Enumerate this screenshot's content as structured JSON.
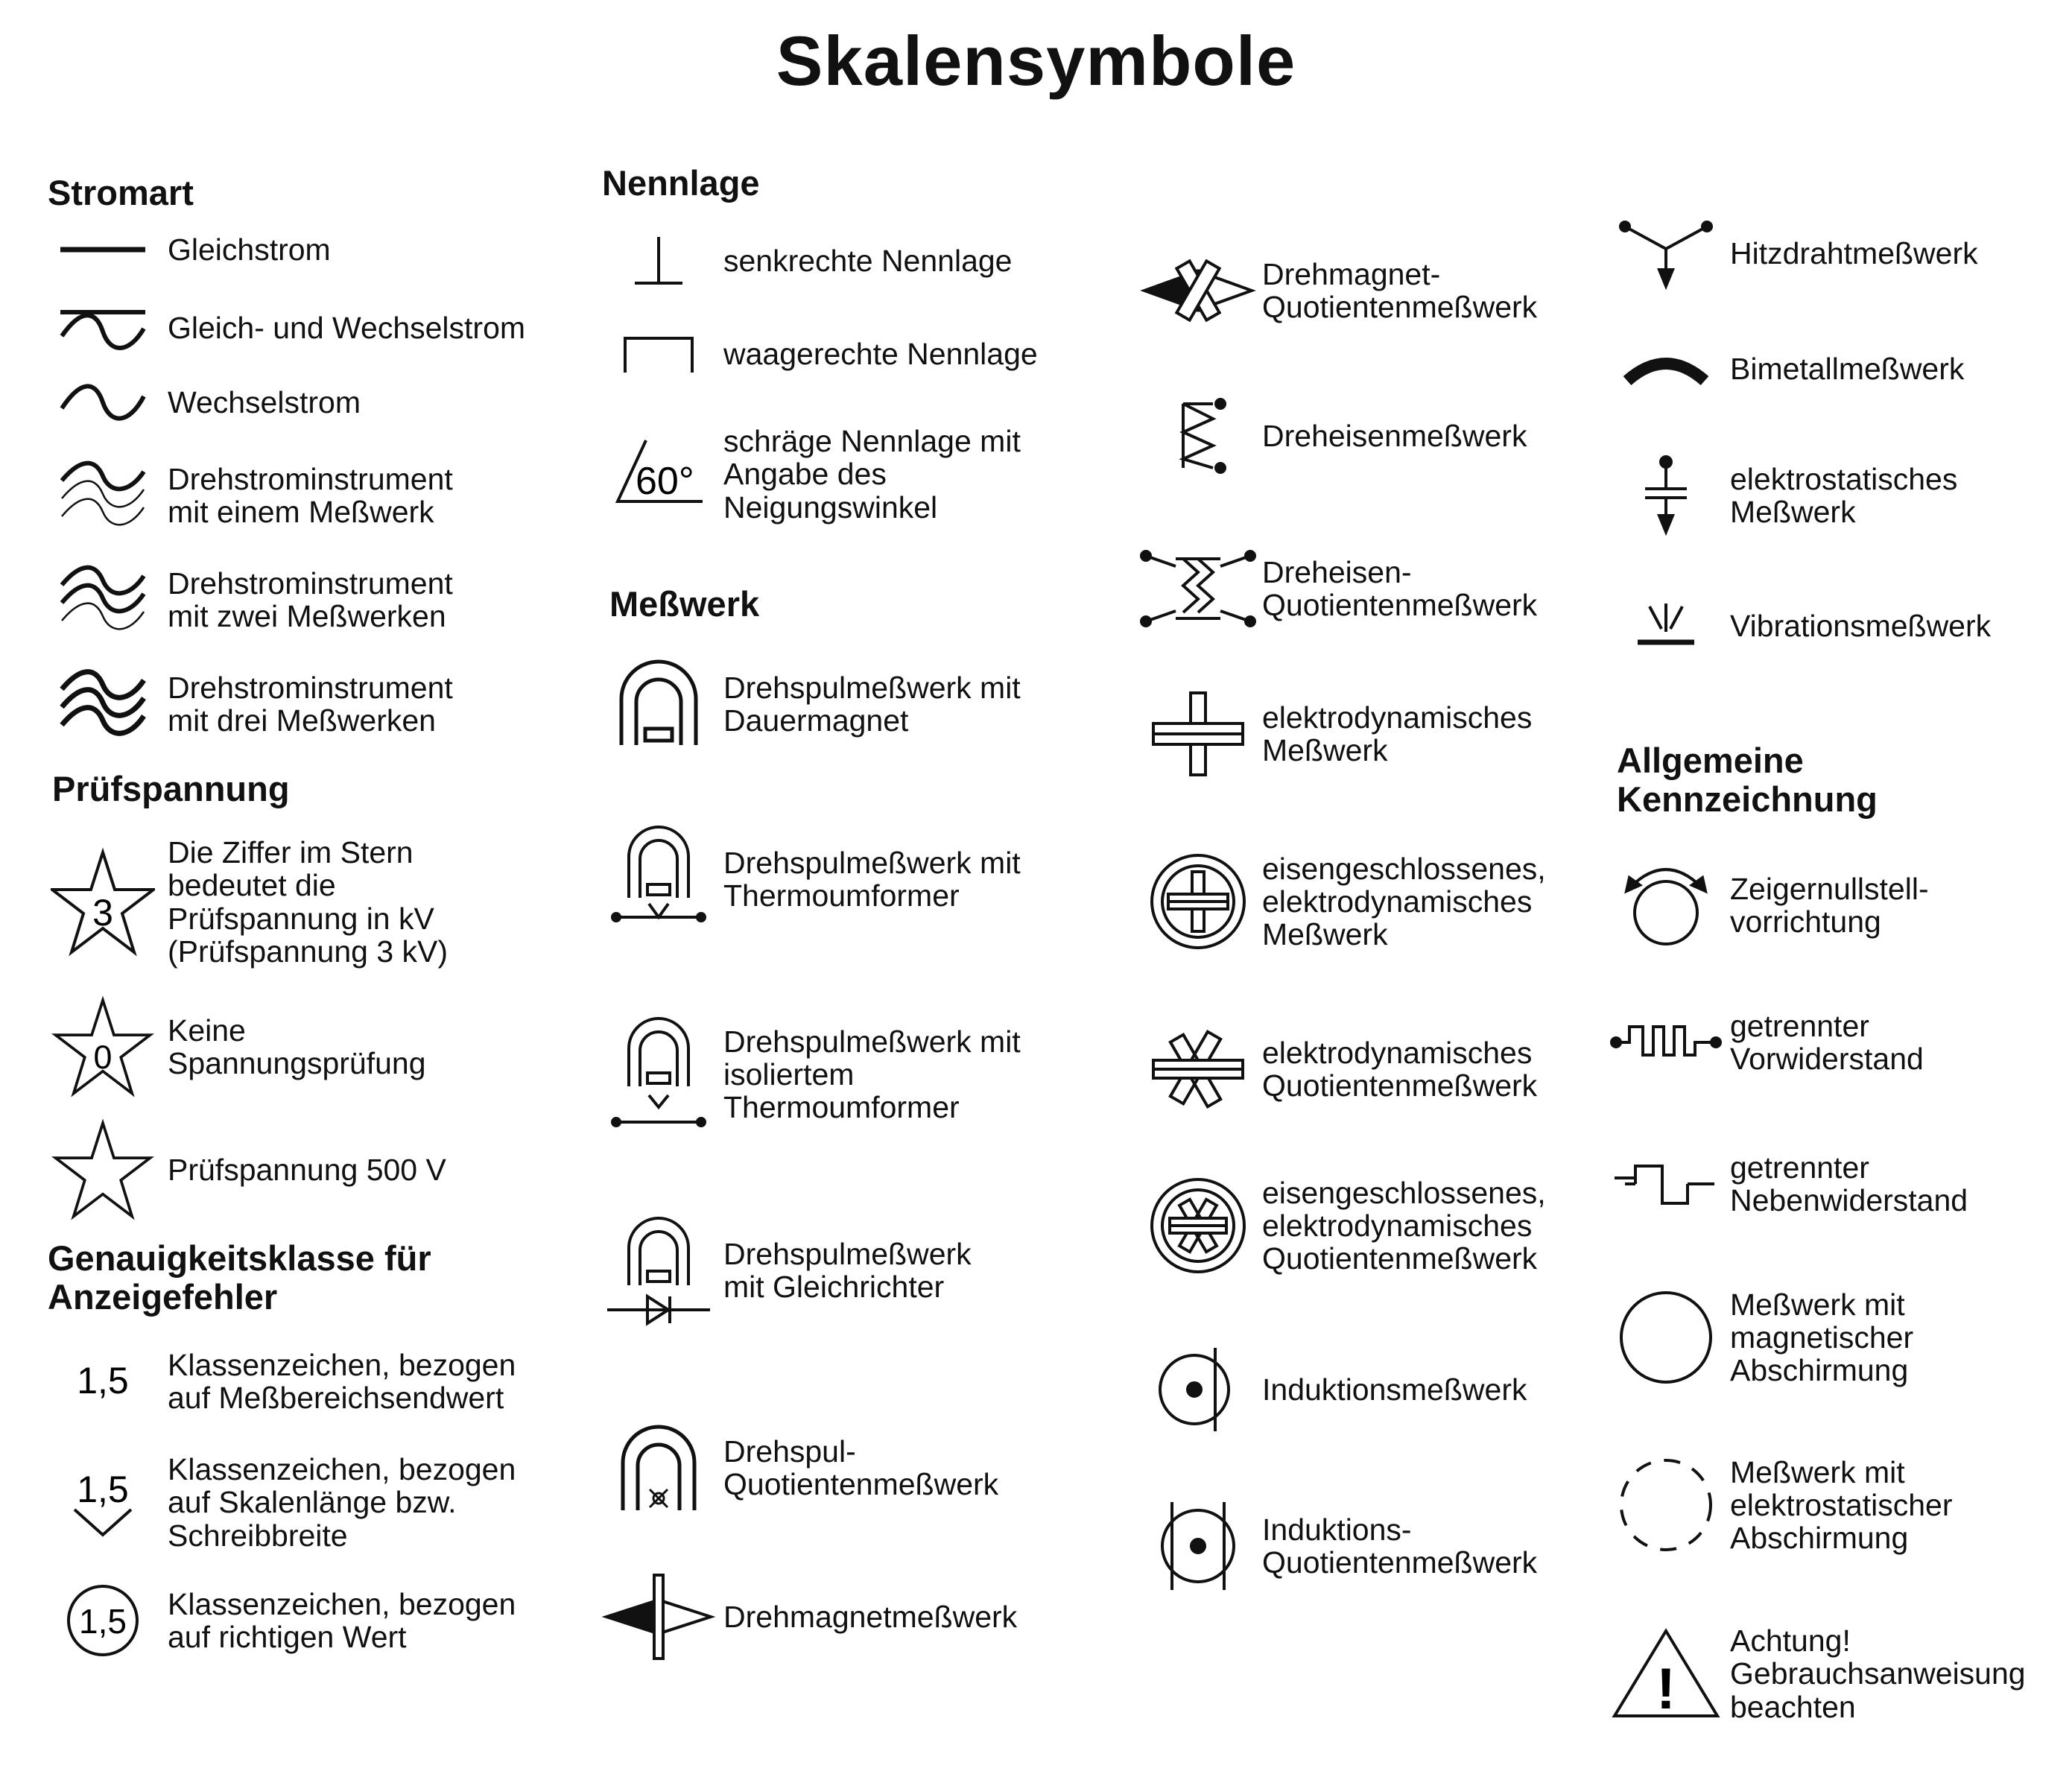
{
  "title": "Skalensymbole",
  "sections": {
    "stromart": {
      "heading": "Stromart",
      "items": [
        {
          "icon": "gleichstrom-icon",
          "label": "Gleichstrom"
        },
        {
          "icon": "gleich-wechselstrom-icon",
          "label": "Gleich- und Wechselstrom"
        },
        {
          "icon": "wechselstrom-icon",
          "label": "Wechselstrom"
        },
        {
          "icon": "drehstrom-ein-messwerk-icon",
          "label": "Drehstrominstrument\nmit einem Meßwerk"
        },
        {
          "icon": "drehstrom-zwei-messwerke-icon",
          "label": "Drehstrominstrument\nmit zwei Meßwerken"
        },
        {
          "icon": "drehstrom-drei-messwerke-icon",
          "label": "Drehstrominstrument\nmit drei Meßwerken"
        }
      ]
    },
    "pruefspannung": {
      "heading": "Prüfspannung",
      "items": [
        {
          "icon": "star-3-icon",
          "symbol_text": "3",
          "label": "Die Ziffer im Stern\nbedeutet die\nPrüfspannung in kV\n(Prüfspannung 3 kV)"
        },
        {
          "icon": "star-0-icon",
          "symbol_text": "0",
          "label": "Keine\nSpannungsprüfung"
        },
        {
          "icon": "star-empty-icon",
          "label": "Prüfspannung 500 V"
        }
      ]
    },
    "genauigkeit": {
      "heading": "Genauigkeitsklasse für\nAnzeigefehler",
      "items": [
        {
          "icon": "klasse-messbereich-icon",
          "symbol_text": "1,5",
          "label": "Klassenzeichen, bezogen\nauf Meßbereichsendwert"
        },
        {
          "icon": "klasse-skalenlaenge-icon",
          "symbol_text": "1,5",
          "label": "Klassenzeichen, bezogen\nauf Skalenlänge bzw.\nSchreibbreite"
        },
        {
          "icon": "klasse-richtiger-wert-icon",
          "symbol_text": "1,5",
          "label": "Klassenzeichen, bezogen\nauf richtigen Wert"
        }
      ]
    },
    "nennlage": {
      "heading": "Nennlage",
      "items": [
        {
          "icon": "senkrecht-icon",
          "label": "senkrechte Nennlage"
        },
        {
          "icon": "waagerecht-icon",
          "label": "waagerechte Nennlage"
        },
        {
          "icon": "schraeg-icon",
          "symbol_text": "60°",
          "label": "schräge Nennlage mit\nAngabe des\nNeigungswinkel"
        }
      ]
    },
    "messwerk": {
      "heading": "Meßwerk",
      "items": [
        {
          "icon": "drehspul-dauermagnet-icon",
          "label": "Drehspulmeßwerk mit\nDauermagnet"
        },
        {
          "icon": "drehspul-thermoumformer-icon",
          "label": "Drehspulmeßwerk mit\nThermoumformer"
        },
        {
          "icon": "drehspul-isoliert-thermoumformer-icon",
          "label": "Drehspulmeßwerk mit\nisoliertem\nThermoumformer"
        },
        {
          "icon": "drehspul-gleichrichter-icon",
          "label": "Drehspulmeßwerk\nmit Gleichrichter"
        },
        {
          "icon": "drehspul-quotient-icon",
          "label": "Drehspul-\nQuotientenmeßwerk"
        },
        {
          "icon": "drehmagnet-icon",
          "label": "Drehmagnetmeßwerk"
        }
      ]
    },
    "messwerk2": {
      "items": [
        {
          "icon": "drehmagnet-quotient-icon",
          "label": "Drehmagnet-\nQuotientenmeßwerk"
        },
        {
          "icon": "dreheisen-icon",
          "label": "Dreheisenmeßwerk"
        },
        {
          "icon": "dreheisen-quotient-icon",
          "label": "Dreheisen-\nQuotientenmeßwerk"
        },
        {
          "icon": "elektrodynamisch-icon",
          "label": "elektrodynamisches\nMeßwerk"
        },
        {
          "icon": "eisengeschlossen-elektrodynamisch-icon",
          "label": "eisengeschlossenes,\nelektrodynamisches\nMeßwerk"
        },
        {
          "icon": "elektrodynamisch-quotient-icon",
          "label": "elektrodynamisches\nQuotientenmeßwerk"
        },
        {
          "icon": "eisengeschlossen-quotient-icon",
          "label": "eisengeschlossenes,\nelektrodynamisches\nQuotientenmeßwerk"
        },
        {
          "icon": "induktion-icon",
          "label": "Induktionsmeßwerk"
        },
        {
          "icon": "induktion-quotient-icon",
          "label": "Induktions-\nQuotientenmeßwerk"
        }
      ]
    },
    "messwerk3": {
      "items": [
        {
          "icon": "hitzdraht-icon",
          "label": "Hitzdrahtmeßwerk"
        },
        {
          "icon": "bimetall-icon",
          "label": "Bimetallmeßwerk"
        },
        {
          "icon": "elektrostatisch-icon",
          "label": "elektrostatisches\nMeßwerk"
        },
        {
          "icon": "vibration-icon",
          "label": "Vibrationsmeßwerk"
        }
      ]
    },
    "allgemein": {
      "heading": "Allgemeine\nKennzeichnung",
      "items": [
        {
          "icon": "zeigernullstell-icon",
          "label": "Zeigernullstell-\nvorrichtung"
        },
        {
          "icon": "vorwiderstand-icon",
          "label": "getrennter\nVorwiderstand"
        },
        {
          "icon": "nebenwiderstand-icon",
          "label": "getrennter\nNebenwiderstand"
        },
        {
          "icon": "magnetische-abschirmung-icon",
          "label": "Meßwerk mit\nmagnetischer\nAbschirmung"
        },
        {
          "icon": "elektrostatische-abschirmung-icon",
          "label": "Meßwerk mit\nelektrostatischer\nAbschirmung"
        },
        {
          "icon": "warning-icon",
          "symbol_text": "!",
          "label": "Achtung!\nGebrauchsanweisung\nbeachten"
        }
      ]
    }
  }
}
